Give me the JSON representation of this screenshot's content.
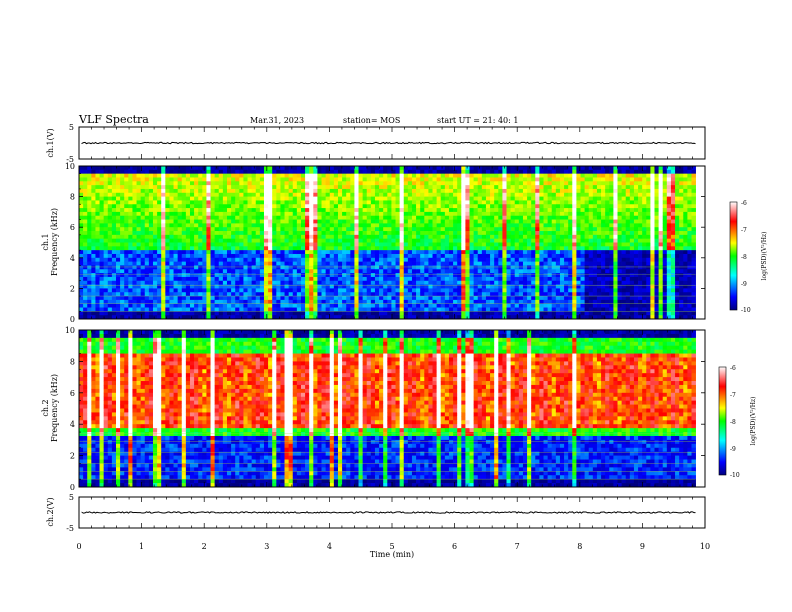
{
  "header": {
    "title": "VLF Spectra",
    "date": "Mar.31, 2023",
    "station": "station= MOS",
    "start_ut": "start  UT =   21: 40: 1"
  },
  "chart_data": [
    {
      "type": "line",
      "name": "ch1-waveform",
      "ylabel": "ch.1(V)",
      "ylim": [
        -5,
        5
      ],
      "yticks": [
        "5",
        "-5"
      ],
      "values_approx": 0
    },
    {
      "type": "heatmap",
      "name": "ch1-spectrogram",
      "ylabel": "ch.1\nFrequency (kHz)",
      "ylabel_l1": "ch.1",
      "ylabel_l2": "Frequency (kHz)",
      "xlim": [
        0,
        10
      ],
      "ylim": [
        0,
        10
      ],
      "yticks": [
        "0",
        "2",
        "4",
        "6",
        "8",
        "10"
      ],
      "colorbar": {
        "label": "log(PSD)(V²/Hz)",
        "range": [
          -10,
          -6
        ],
        "ticks": [
          "-6",
          "-7",
          "-8",
          "-9",
          "-10"
        ]
      },
      "data_extent_min": 9.85,
      "description_bands": {
        "low_band_kHz": [
          0,
          4.5
        ],
        "high_band_kHz": [
          4.5,
          10
        ],
        "quiet_after_min": 8.1
      }
    },
    {
      "type": "heatmap",
      "name": "ch2-spectrogram",
      "ylabel_l1": "ch.2",
      "ylabel_l2": "Frequency (kHz)",
      "xlim": [
        0,
        10
      ],
      "ylim": [
        0,
        10
      ],
      "yticks": [
        "0",
        "2",
        "4",
        "6",
        "8",
        "10"
      ],
      "colorbar": {
        "label": "log(PSD)(V²/Hz)",
        "range": [
          -10,
          -6
        ],
        "ticks": [
          "-6",
          "-7",
          "-8",
          "-9",
          "-10"
        ]
      },
      "data_extent_min": 9.85
    },
    {
      "type": "line",
      "name": "ch2-waveform",
      "ylabel": "ch.2(V)",
      "ylim": [
        -5,
        5
      ],
      "yticks": [
        "5",
        "-5"
      ],
      "values_approx": 0
    }
  ],
  "xaxis": {
    "label": "Time  (min)",
    "ticks": [
      "0",
      "1",
      "2",
      "3",
      "4",
      "5",
      "6",
      "7",
      "8",
      "9",
      "10"
    ],
    "range": [
      0,
      10
    ]
  },
  "colors": {
    "colormap": [
      "#000080",
      "#0000ff",
      "#00ffff",
      "#00ff00",
      "#ffff00",
      "#ff0000",
      "#ffffff"
    ]
  }
}
